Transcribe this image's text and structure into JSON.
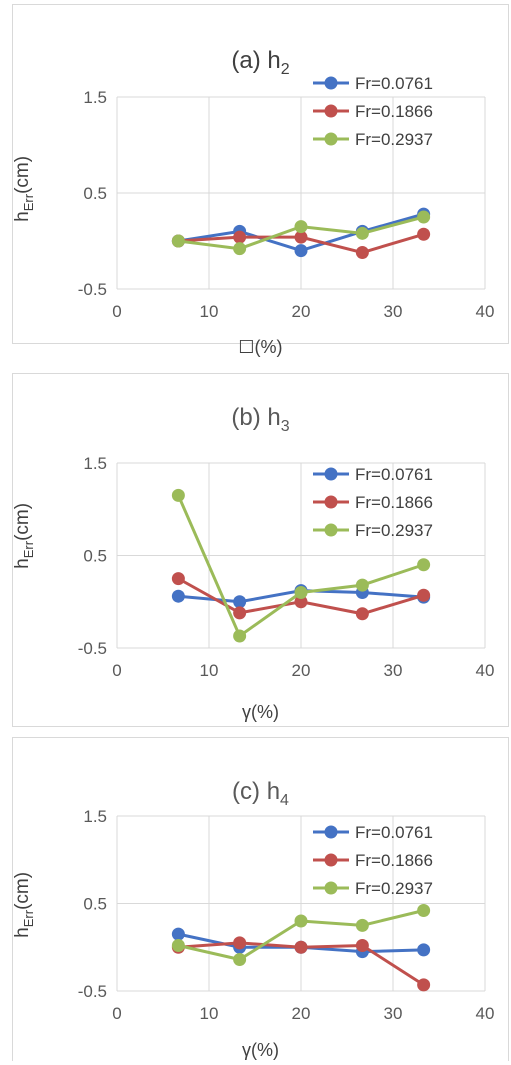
{
  "chart_data": [
    {
      "type": "line",
      "title_main": "(a) h",
      "title_sub": "2",
      "ylabel_main": "h",
      "ylabel_sub": "Err",
      "ylabel_tail": "(cm)",
      "xlabel": "☐(%)",
      "xlim": [
        0,
        40
      ],
      "ylim": [
        -0.5,
        1.5
      ],
      "xticks": [
        "0",
        "10",
        "20",
        "30",
        "40"
      ],
      "yticks": [
        "1.5",
        "0.5",
        "-0.5"
      ],
      "ytick_values": [
        1.5,
        0.5,
        -0.5
      ],
      "xtick_values": [
        0,
        10,
        20,
        30,
        40
      ],
      "grid": true,
      "legend_position": "top-right",
      "x": [
        6.67,
        13.33,
        20,
        26.67,
        33.33
      ],
      "series": [
        {
          "name": "Fr=0.0761",
          "color": "#4472C4",
          "values": [
            0.0,
            0.1,
            -0.1,
            0.1,
            0.28
          ]
        },
        {
          "name": "Fr=0.1866",
          "color": "#C0504D",
          "values": [
            0.0,
            0.04,
            0.04,
            -0.12,
            0.07
          ]
        },
        {
          "name": "Fr=0.2937",
          "color": "#9BBB59",
          "values": [
            0.0,
            -0.08,
            0.15,
            0.08,
            0.25
          ]
        }
      ]
    },
    {
      "type": "line",
      "title_main": "(b) h",
      "title_sub": "3",
      "ylabel_main": "h",
      "ylabel_sub": "Err",
      "ylabel_tail": "(cm)",
      "xlabel": "γ(%)",
      "xlim": [
        0,
        40
      ],
      "ylim": [
        -0.5,
        1.5
      ],
      "xticks": [
        "0",
        "10",
        "20",
        "30",
        "40"
      ],
      "yticks": [
        "1.5",
        "0.5",
        "-0.5"
      ],
      "ytick_values": [
        1.5,
        0.5,
        -0.5
      ],
      "xtick_values": [
        0,
        10,
        20,
        30,
        40
      ],
      "grid": true,
      "legend_position": "top-right",
      "x": [
        6.67,
        13.33,
        20,
        26.67,
        33.33
      ],
      "series": [
        {
          "name": "Fr=0.0761",
          "color": "#4472C4",
          "values": [
            0.06,
            0.0,
            0.12,
            0.1,
            0.05
          ]
        },
        {
          "name": "Fr=0.1866",
          "color": "#C0504D",
          "values": [
            0.25,
            -0.12,
            0.0,
            -0.13,
            0.07
          ]
        },
        {
          "name": "Fr=0.2937",
          "color": "#9BBB59",
          "values": [
            1.15,
            -0.37,
            0.1,
            0.18,
            0.4
          ]
        }
      ]
    },
    {
      "type": "line",
      "title_main": "(c) h",
      "title_sub": "4",
      "ylabel_main": "h",
      "ylabel_sub": "Err",
      "ylabel_tail": "(cm)",
      "xlabel": "γ(%)",
      "xlim": [
        0,
        40
      ],
      "ylim": [
        -0.5,
        1.5
      ],
      "xticks": [
        "0",
        "10",
        "20",
        "30",
        "40"
      ],
      "yticks": [
        "1.5",
        "0.5",
        "-0.5"
      ],
      "ytick_values": [
        1.5,
        0.5,
        -0.5
      ],
      "xtick_values": [
        0,
        10,
        20,
        30,
        40
      ],
      "grid": true,
      "legend_position": "top-right",
      "x": [
        6.67,
        13.33,
        20,
        26.67,
        33.33
      ],
      "series": [
        {
          "name": "Fr=0.0761",
          "color": "#4472C4",
          "values": [
            0.15,
            0.0,
            0.0,
            -0.05,
            -0.03
          ]
        },
        {
          "name": "Fr=0.1866",
          "color": "#C0504D",
          "values": [
            0.0,
            0.05,
            0.0,
            0.02,
            -0.43
          ]
        },
        {
          "name": "Fr=0.2937",
          "color": "#9BBB59",
          "values": [
            0.02,
            -0.14,
            0.3,
            0.25,
            0.42
          ]
        }
      ]
    }
  ]
}
